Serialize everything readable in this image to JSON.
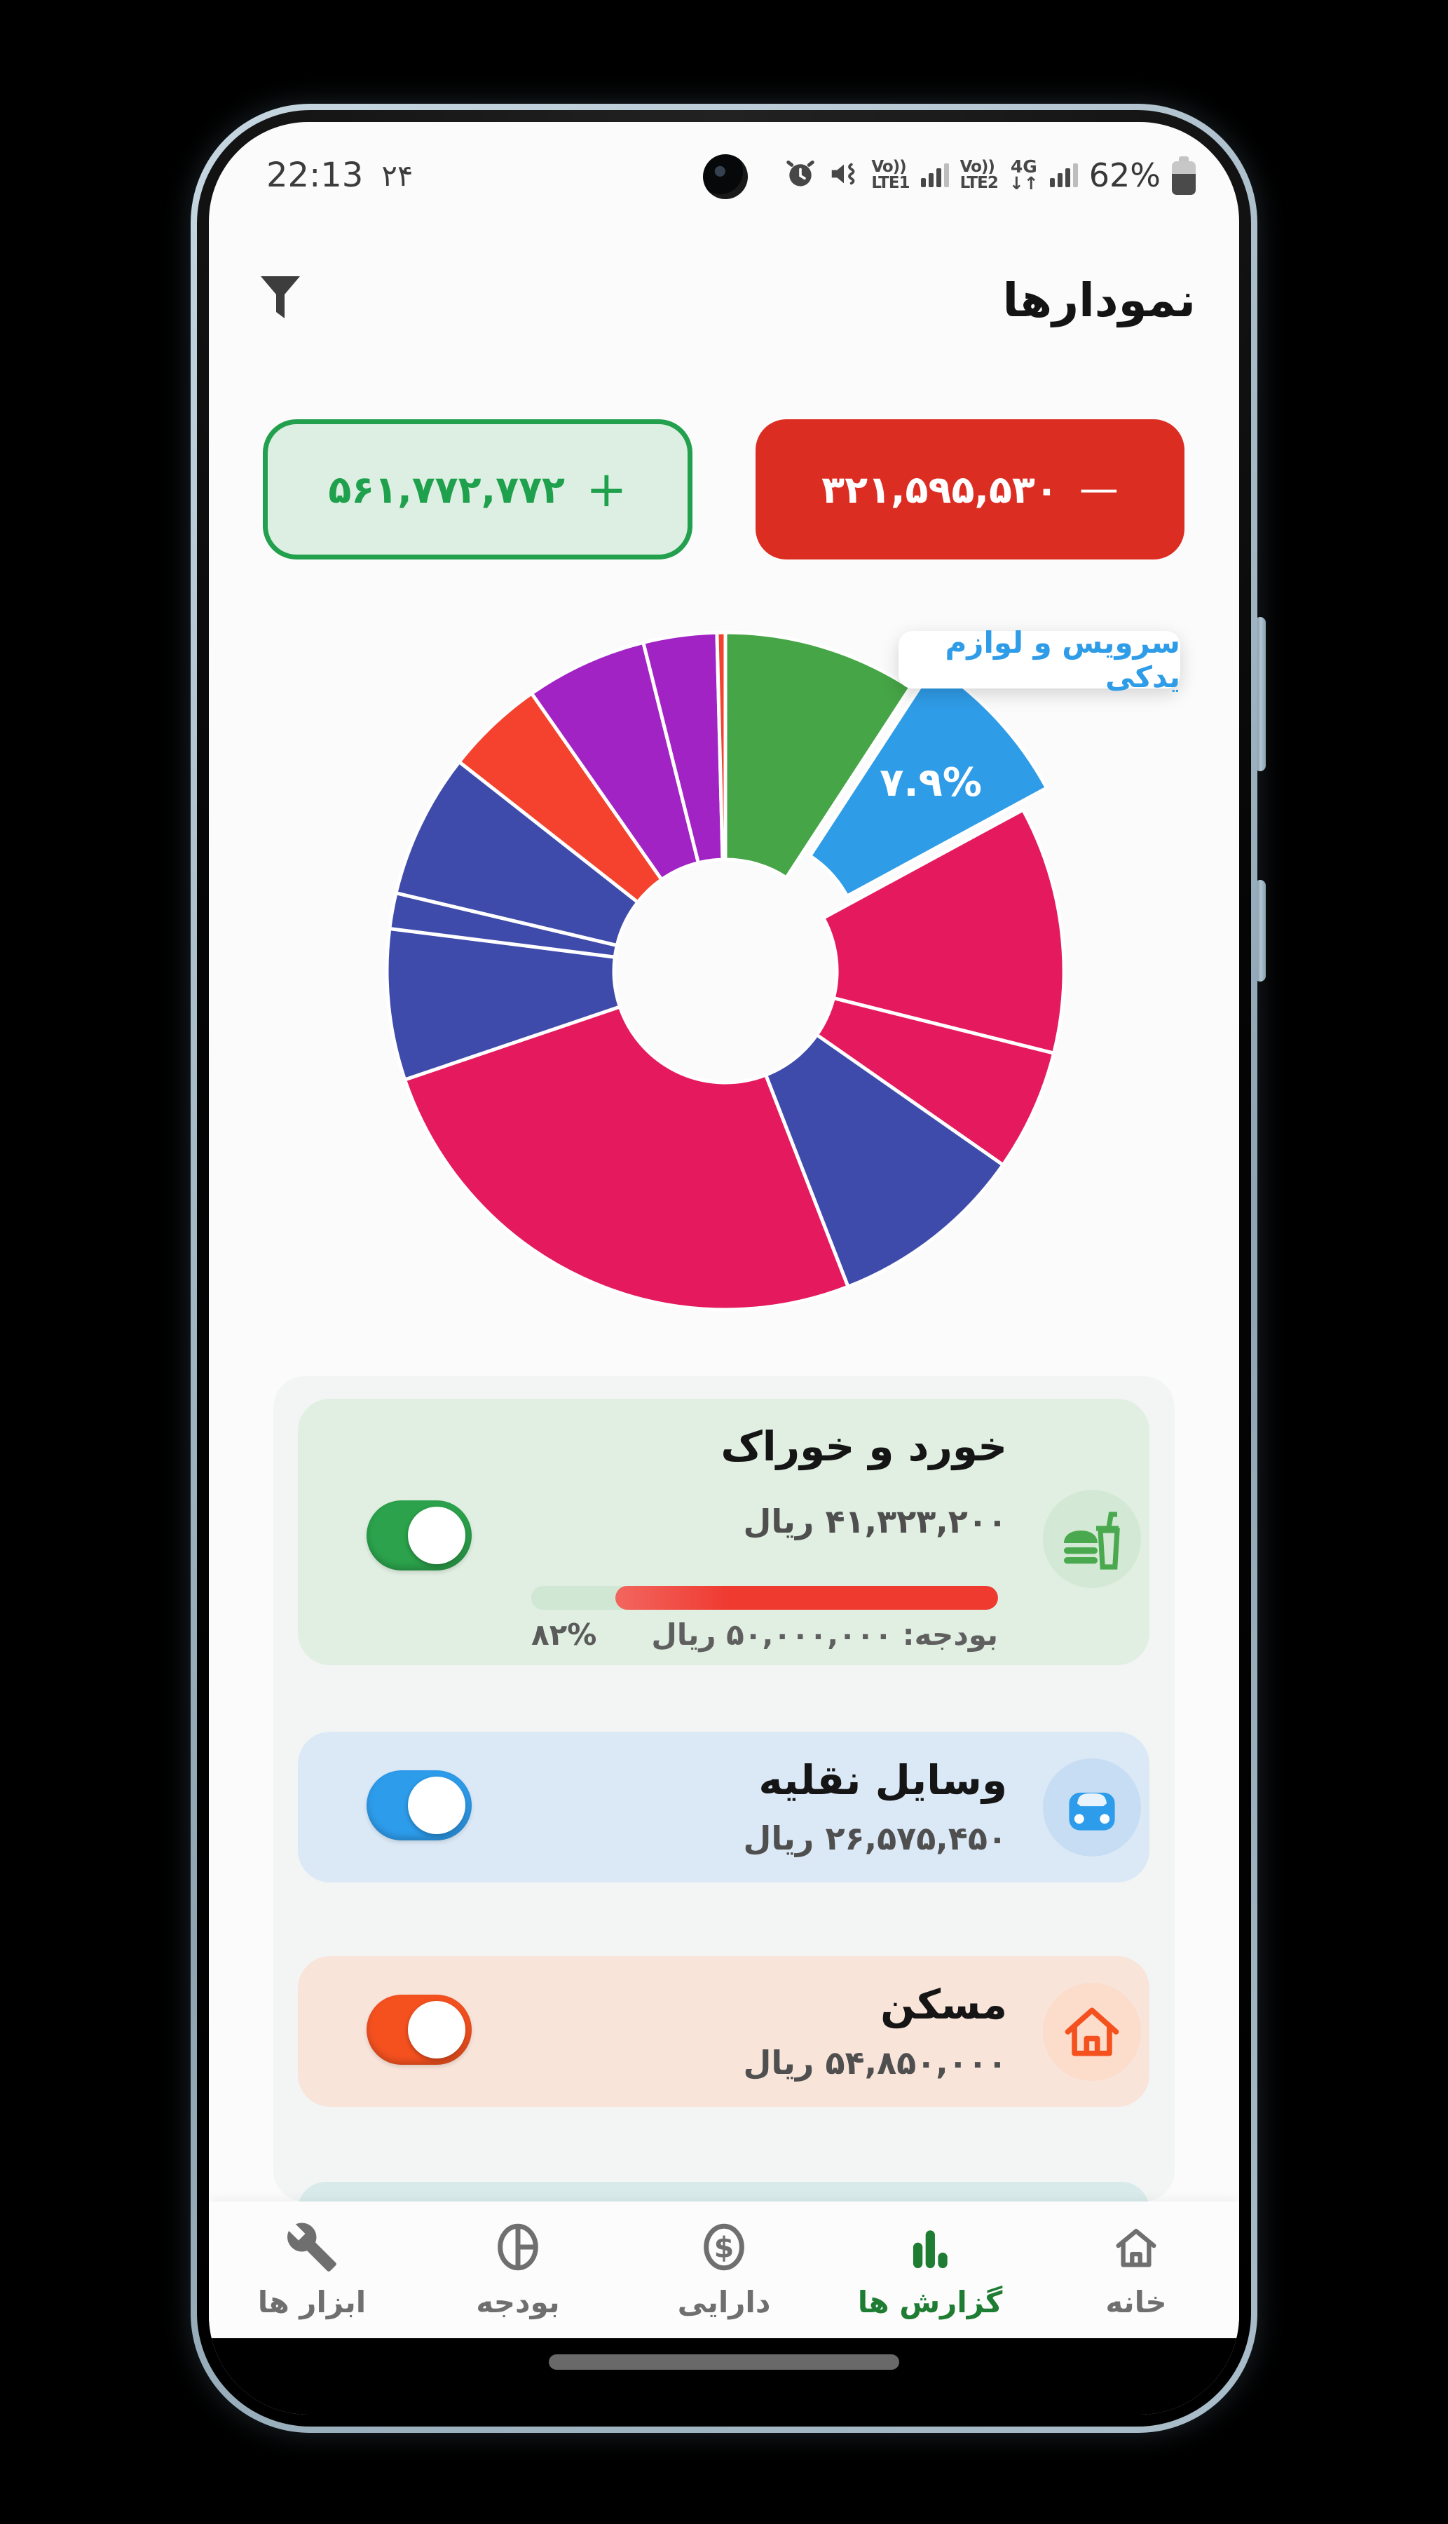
{
  "status_bar": {
    "time": "22:13",
    "day": "۲۴",
    "battery_pct": "62%",
    "battery_level": 62,
    "sim1_line1": "Vo))",
    "sim1_line2": "LTE1",
    "sim2_line1": "Vo))",
    "sim2_line2": "LTE2",
    "network": "4G",
    "updown": "↓↑"
  },
  "header": {
    "title": "نمودارها"
  },
  "summary": {
    "income_value": "۵۶۱,۷۷۲,۷۷۲",
    "income_sign": "+",
    "income_color": "#23a04d",
    "expense_value": "۳۲۱,۵۹۵,۵۳۰",
    "expense_sign": "—",
    "expense_color": "#dc2d23"
  },
  "chart_data": {
    "type": "pie",
    "donut": true,
    "inner_radius_ratio": 0.33,
    "start_angle_deg": 0,
    "direction": "clockwise",
    "tooltip_text": "سرویس و لوازم یدکی",
    "slices": [
      {
        "pct": 9.2,
        "color": "#46a546"
      },
      {
        "pct": 7.9,
        "color": "#2f9ce8",
        "label": "سرویس و لوازم یدکی",
        "pct_label": "۷.۹%",
        "exploded": true
      },
      {
        "pct": 11.8,
        "color": "#e5195e"
      },
      {
        "pct": 5.8,
        "color": "#e5195e"
      },
      {
        "pct": 9.4,
        "color": "#3f4bab"
      },
      {
        "pct": 25.7,
        "color": "#e5195e"
      },
      {
        "pct": 7.2,
        "color": "#3f4bab"
      },
      {
        "pct": 1.7,
        "color": "#3f4bab"
      },
      {
        "pct": 6.9,
        "color": "#3f4bab"
      },
      {
        "pct": 4.7,
        "color": "#f4422e"
      },
      {
        "pct": 5.8,
        "color": "#a123c4"
      },
      {
        "pct": 3.5,
        "color": "#a123c4"
      },
      {
        "pct": 0.4,
        "color": "#f4422e"
      }
    ]
  },
  "categories": [
    {
      "title": "خورد و خوراک",
      "amount": "۴۱,۳۲۳,۲۰۰ ریال",
      "accent": "#2ba24b",
      "bg": "#e0efe2",
      "icon": "food-icon",
      "toggle_on": true,
      "progress_pct": 82,
      "pct_label": "۸۲%",
      "budget_label": "بودجه: ۵۰,۰۰۰,۰۰۰ ریال",
      "progress_fill_color": "#ef3a30"
    },
    {
      "title": "وسایل نقلیه",
      "amount": "۲۶,۵۷۵,۴۵۰ ریال",
      "accent": "#2d9ceb",
      "bg": "#dbe9f7",
      "icon": "car-icon",
      "toggle_on": true
    },
    {
      "title": "مسکن",
      "amount": "۵۴,۸۵۰,۰۰۰ ریال",
      "accent": "#f4511f",
      "bg": "#f9e4da",
      "icon": "home-icon",
      "toggle_on": true
    }
  ],
  "bottom_nav": {
    "active_color": "#1e7d33",
    "items": [
      {
        "label": "ابزار ها",
        "icon": "wrench-icon"
      },
      {
        "label": "بودجه",
        "icon": "pie-icon"
      },
      {
        "label": "دارایی",
        "icon": "dollar-icon"
      },
      {
        "label": "گزارش ها",
        "icon": "bar-chart-icon",
        "active": true
      },
      {
        "label": "خانه",
        "icon": "home-icon"
      }
    ]
  }
}
